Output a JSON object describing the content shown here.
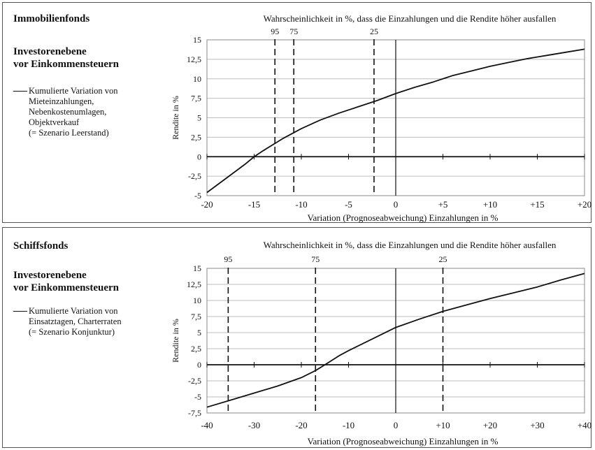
{
  "chart_data": [
    {
      "type": "line",
      "panel_title": "Immobilienfonds",
      "subtitle_line1": "Investorenebene",
      "subtitle_line2": "vor Einkommensteuern",
      "legend": [
        "Kumulierte Variation von",
        "Mieteinzahlungen,",
        "Nebenkostenumlagen,",
        "Objektverkauf",
        "(= Szenario Leerstand)"
      ],
      "top_label": "Wahrscheinlichkeit in %, dass die Einzahlungen und die Rendite höher ausfallen",
      "xlabel": "Variation (Prognoseabweichung) Einzahlungen in %",
      "ylabel": "Rendite in %",
      "xlim": [
        -20,
        20
      ],
      "ylim": [
        -5,
        15
      ],
      "x_ticks": [
        -20,
        -15,
        -10,
        -5,
        0,
        5,
        10,
        15,
        20
      ],
      "x_tick_labels": [
        "-20",
        "-15",
        "-10",
        "-5",
        "0",
        "+5",
        "+10",
        "+15",
        "+20"
      ],
      "y_ticks": [
        -5,
        -2.5,
        0,
        2.5,
        5,
        7.5,
        10,
        12.5,
        15
      ],
      "y_tick_labels": [
        "-5",
        "-2,5",
        "0",
        "2,5",
        "5",
        "7,5",
        "10",
        "12,5",
        "15"
      ],
      "grid": true,
      "series": [
        {
          "x": [
            -20,
            -18,
            -16,
            -15,
            -14,
            -12,
            -10,
            -8,
            -6,
            -4,
            -2,
            0,
            2,
            4,
            6,
            8,
            10,
            12,
            14,
            16,
            18,
            20
          ],
          "values": [
            -4.6,
            -2.8,
            -1.0,
            0.0,
            0.8,
            2.3,
            3.6,
            4.7,
            5.6,
            6.4,
            7.2,
            8.1,
            8.9,
            9.6,
            10.4,
            11.0,
            11.6,
            12.1,
            12.6,
            13.0,
            13.4,
            13.8
          ]
        }
      ],
      "probability_markers": [
        {
          "x": -12.8,
          "label": "95"
        },
        {
          "x": -10.8,
          "label": "75"
        },
        {
          "x": -2.3,
          "label": "25"
        }
      ]
    },
    {
      "type": "line",
      "panel_title": "Schiffsfonds",
      "subtitle_line1": "Investorenebene",
      "subtitle_line2": "vor Einkommensteuern",
      "legend": [
        "Kumulierte Variation von",
        "Einsatztagen, Charterraten",
        "(= Szenario Konjunktur)"
      ],
      "top_label": "Wahrscheinlichkeit in %, dass die Einzahlungen und die Rendite höher ausfallen",
      "xlabel": "Variation (Prognoseabweichung) Einzahlungen in %",
      "ylabel": "Rendite in %",
      "xlim": [
        -40,
        40
      ],
      "ylim": [
        -7.5,
        15
      ],
      "x_ticks": [
        -40,
        -30,
        -20,
        -10,
        0,
        10,
        20,
        30,
        40
      ],
      "x_tick_labels": [
        "-40",
        "-30",
        "-20",
        "-10",
        "0",
        "+10",
        "+20",
        "+30",
        "+40"
      ],
      "y_ticks": [
        -7.5,
        -5,
        -2.5,
        0,
        2.5,
        5,
        7.5,
        10,
        12.5,
        15
      ],
      "y_tick_labels": [
        "-7,5",
        "-5",
        "-2,5",
        "0",
        "2,5",
        "5",
        "7,5",
        "10",
        "12,5",
        "15"
      ],
      "grid": true,
      "series": [
        {
          "x": [
            -40,
            -35,
            -30,
            -25,
            -20,
            -17,
            -15,
            -12,
            -10,
            -5,
            0,
            5,
            10,
            15,
            20,
            25,
            30,
            35,
            40
          ],
          "values": [
            -6.6,
            -5.5,
            -4.4,
            -3.3,
            -2.0,
            -0.9,
            0.0,
            1.4,
            2.2,
            4.0,
            5.8,
            7.1,
            8.3,
            9.3,
            10.3,
            11.2,
            12.1,
            13.2,
            14.2
          ]
        }
      ],
      "probability_markers": [
        {
          "x": -35.5,
          "label": "95"
        },
        {
          "x": -17,
          "label": "75"
        },
        {
          "x": 10,
          "label": "25"
        }
      ]
    }
  ]
}
